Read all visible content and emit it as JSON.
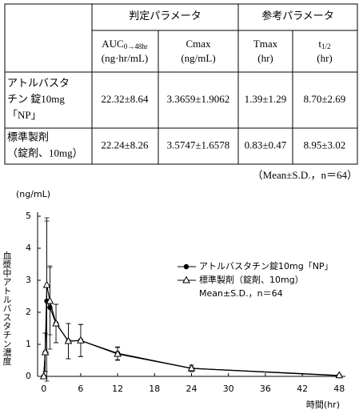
{
  "table": {
    "group_headers": [
      "判定パラメータ",
      "参考パラメータ"
    ],
    "column_headers": [
      {
        "name": "AUC",
        "sub": "0→48hr",
        "unit": "(ng·hr/mL)"
      },
      {
        "name": "Cmax",
        "unit": "(ng/mL)"
      },
      {
        "name": "Tmax",
        "unit": "(hr)"
      },
      {
        "name": "t",
        "sub": "1/2",
        "unit": "(hr)"
      }
    ],
    "rows": [
      {
        "label": [
          "アトルバスタ",
          "チン 錠10mg",
          "「NP」"
        ],
        "cells": [
          "22.32±8.64",
          "3.3659±1.9062",
          "1.39±1.29",
          "8.70±2.69"
        ]
      },
      {
        "label": [
          "標準製剤",
          "（錠剤、10mg）"
        ],
        "cells": [
          "22.24±8.26",
          "3.5747±1.6578",
          "0.83±0.47",
          "8.95±3.02"
        ]
      }
    ],
    "note": "（Mean±S.D.，n＝64）"
  },
  "chart_data": {
    "type": "line",
    "y_unit": "(ng/mL)",
    "y_label": "血漿中アトルバスタチン濃度",
    "x_label": "時間(hr)",
    "x": [
      0,
      0.25,
      0.5,
      1,
      2,
      4,
      6,
      12,
      24,
      48
    ],
    "series": [
      {
        "name": "アトルバスタチン錠10mg「NP」",
        "color": "#000000",
        "marker": "circle",
        "values": [
          0,
          0.75,
          2.35,
          2.15,
          1.65,
          1.1,
          1.12,
          0.72,
          0.25,
          0.02
        ],
        "errors": [
          0,
          0.6,
          2.5,
          1.3,
          0.6,
          0.55,
          0.5,
          0.2,
          0.1,
          0.02
        ]
      },
      {
        "name": "標準製剤（錠剤、10mg）",
        "color": "#000000",
        "marker": "triangle",
        "values": [
          0,
          0.75,
          2.85,
          2.35,
          1.65,
          1.1,
          1.12,
          0.7,
          0.25,
          0.03
        ],
        "errors": [
          0,
          0.6,
          2.1,
          1.05,
          0.6,
          0.55,
          0.5,
          0.2,
          0.1,
          0.02
        ]
      }
    ],
    "legend_note": "Mean±S.D.，n＝64",
    "xlim": [
      -1,
      49
    ],
    "ylim": [
      0,
      5
    ],
    "xticks": [
      0,
      6,
      12,
      18,
      24,
      30,
      36,
      42,
      48
    ],
    "yticks": [
      0,
      1,
      2,
      3,
      4,
      5
    ]
  }
}
